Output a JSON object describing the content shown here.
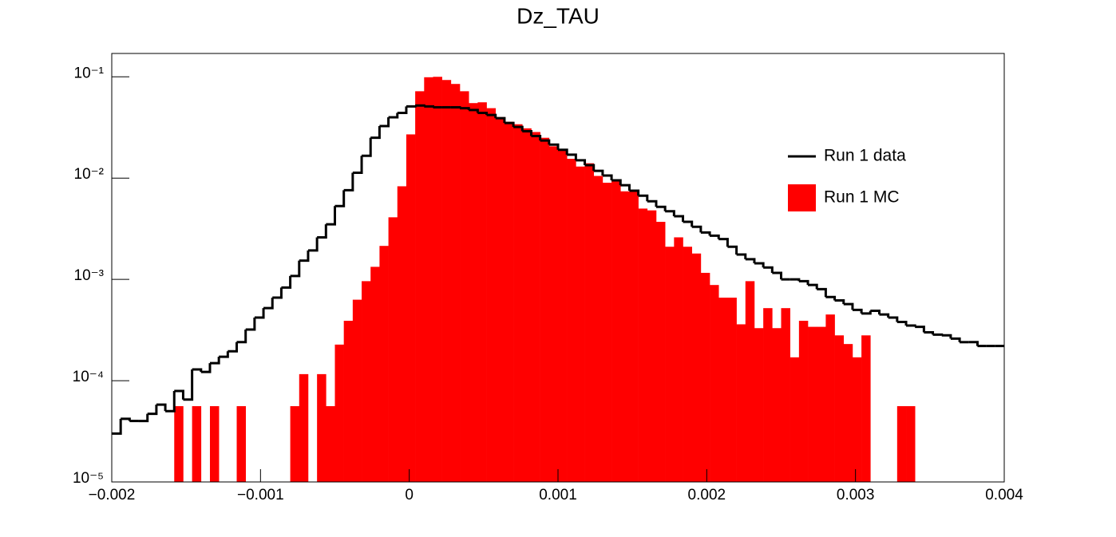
{
  "chart_data": {
    "type": "histogram",
    "title": "Dz_TAU",
    "bins": [
      -0.002,
      -0.00194,
      -0.00188,
      -0.00182,
      -0.00176,
      -0.0017,
      -0.00164,
      -0.00158,
      -0.00152,
      -0.00146,
      -0.0014,
      -0.00134,
      -0.00128,
      -0.00122,
      -0.00116,
      -0.0011,
      -0.00104,
      -0.00098,
      -0.00092,
      -0.00086,
      -0.0008,
      -0.00074,
      -0.00068,
      -0.00062,
      -0.00056,
      -0.0005,
      -0.00044,
      -0.00038,
      -0.00032,
      -0.00026,
      -0.0002,
      -0.00014,
      -8e-05,
      -2e-05,
      4e-05,
      0.0001,
      0.00016,
      0.00022,
      0.00028,
      0.00034,
      0.0004,
      0.00046,
      0.00052,
      0.00058,
      0.00064,
      0.0007,
      0.00076,
      0.00082,
      0.00088,
      0.00094,
      0.001,
      0.00106,
      0.00112,
      0.00118,
      0.00124,
      0.0013,
      0.00136,
      0.00142,
      0.00148,
      0.00154,
      0.0016,
      0.00166,
      0.00172,
      0.00178,
      0.00184,
      0.0019,
      0.00196,
      0.00202,
      0.00208,
      0.00214,
      0.0022,
      0.00226,
      0.00232,
      0.00238,
      0.00244,
      0.0025,
      0.00256,
      0.00262,
      0.00268,
      0.00274,
      0.0028,
      0.00286,
      0.00292,
      0.00298,
      0.00304,
      0.0031,
      0.00316,
      0.00322,
      0.00328,
      0.00334,
      0.0034,
      0.00346,
      0.00352,
      0.00358,
      0.00364,
      0.0037,
      0.00376,
      0.00382,
      0.00388,
      0.00394,
      0.004
    ],
    "series": [
      {
        "name": "Run 1 MC",
        "color": "#ff0000",
        "style": "filled",
        "values": [
          0,
          0,
          0,
          0,
          0,
          0,
          0,
          5.6e-05,
          0,
          5.6e-05,
          0,
          5.6e-05,
          0,
          0,
          5.6e-05,
          0,
          0,
          0,
          0,
          0,
          5.6e-05,
          0.000116,
          0,
          0.000116,
          5.6e-05,
          0.000227,
          0.00039,
          0.00063,
          0.00096,
          0.00133,
          0.00214,
          0.0041,
          0.0083,
          0.027,
          0.072,
          0.099,
          0.1,
          0.093,
          0.085,
          0.072,
          0.055,
          0.056,
          0.049,
          0.04,
          0.036,
          0.034,
          0.031,
          0.0285,
          0.025,
          0.0206,
          0.019,
          0.0155,
          0.013,
          0.014,
          0.0105,
          0.009,
          0.0095,
          0.0074,
          0.0076,
          0.005,
          0.0048,
          0.0037,
          0.0021,
          0.0026,
          0.0021,
          0.0018,
          0.00116,
          0.00088,
          0.00066,
          0.00066,
          0.00036,
          0.00096,
          0.00033,
          0.00052,
          0.00033,
          0.00052,
          0.00017,
          0.00039,
          0.00034,
          0.00034,
          0.00045,
          0.00028,
          0.00023,
          0.00017,
          0.00028,
          0,
          0,
          0,
          5.6e-05,
          5.6e-05,
          0,
          0,
          0,
          0,
          0,
          0,
          0,
          0,
          0,
          0
        ]
      },
      {
        "name": "Run 1 data",
        "color": "#000000",
        "style": "step",
        "values": [
          3e-05,
          4.2e-05,
          4e-05,
          4e-05,
          4.7e-05,
          5.8e-05,
          5e-05,
          7.9e-05,
          6.5e-05,
          0.000129,
          0.000122,
          0.000149,
          0.000172,
          0.000195,
          0.00024,
          0.00032,
          0.00042,
          0.00052,
          0.00066,
          0.00083,
          0.00108,
          0.00153,
          0.00193,
          0.0026,
          0.0035,
          0.0053,
          0.0076,
          0.0113,
          0.0166,
          0.025,
          0.0326,
          0.0398,
          0.044,
          0.051,
          0.052,
          0.051,
          0.05,
          0.05,
          0.05,
          0.049,
          0.047,
          0.044,
          0.042,
          0.039,
          0.035,
          0.032,
          0.029,
          0.026,
          0.0235,
          0.0214,
          0.019,
          0.017,
          0.015,
          0.0134,
          0.0118,
          0.0106,
          0.0095,
          0.0085,
          0.0075,
          0.0067,
          0.0059,
          0.0052,
          0.0047,
          0.0042,
          0.0037,
          0.0033,
          0.0029,
          0.0027,
          0.0025,
          0.0021,
          0.00176,
          0.00158,
          0.00144,
          0.00131,
          0.00116,
          0.001,
          0.001,
          0.00096,
          0.00088,
          0.0008,
          0.00067,
          0.00062,
          0.00057,
          0.0005,
          0.00046,
          0.00049,
          0.00045,
          0.00042,
          0.00038,
          0.00035,
          0.00034,
          0.0003,
          0.000285,
          0.00028,
          0.00026,
          0.00024,
          0.00024,
          0.00022,
          0.00022,
          0.00022
        ]
      }
    ],
    "xlim": [
      -0.002,
      0.004
    ],
    "xticks": [
      {
        "value": -0.002,
        "label": "−0.002"
      },
      {
        "value": -0.001,
        "label": "−0.001"
      },
      0,
      0.001,
      0.002,
      0.003,
      0.004
    ],
    "ylim": [
      1e-05,
      0.17
    ],
    "ylog": true,
    "yticks": [
      {
        "value": 1e-05,
        "label": "10⁻⁵"
      },
      {
        "value": 0.0001,
        "label": "10⁻⁴"
      },
      {
        "value": 0.001,
        "label": "10⁻³"
      },
      {
        "value": 0.01,
        "label": "10⁻²"
      },
      {
        "value": 0.1,
        "label": "10⁻¹"
      }
    ],
    "grid": false,
    "legend": "upper right"
  }
}
